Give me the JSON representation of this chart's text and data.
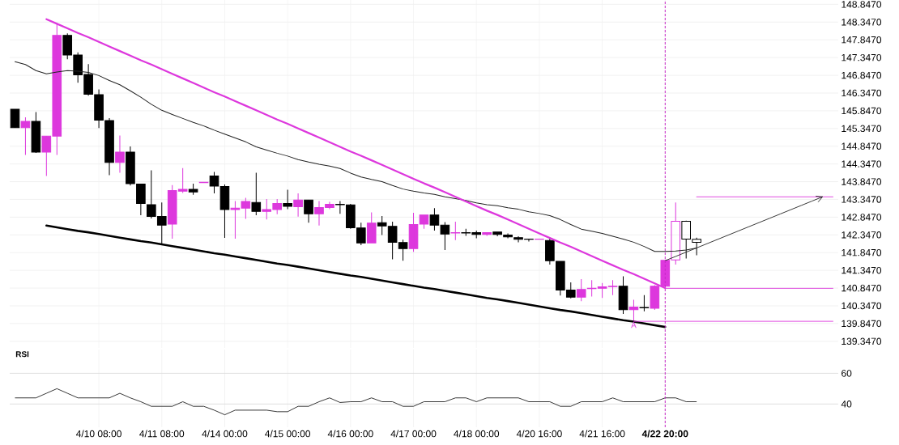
{
  "chart_data": [
    {
      "type": "candlestick",
      "categories": [
        null,
        null,
        null,
        null,
        null,
        null,
        null,
        null,
        "4/10 08:00",
        null,
        null,
        null,
        null,
        null,
        "4/11 08:00",
        null,
        null,
        null,
        null,
        null,
        "4/14 00:00",
        null,
        null,
        null,
        null,
        null,
        "4/15 00:00",
        null,
        null,
        null,
        null,
        null,
        "4/16 00:00",
        null,
        null,
        null,
        null,
        null,
        "4/17 00:00",
        null,
        null,
        null,
        null,
        null,
        "4/18 00:00",
        null,
        null,
        null,
        null,
        null,
        "4/20 16:00",
        null,
        null,
        null,
        null,
        null,
        "4/21 16:00",
        null,
        null,
        null,
        null,
        null,
        "4/22 20:00",
        null,
        null,
        null,
        null,
        null,
        null,
        null,
        null,
        null,
        null,
        null,
        null,
        null,
        null,
        null,
        null
      ],
      "ohlc": [
        [
          145.89,
          145.89,
          145.37,
          145.37
        ],
        [
          145.37,
          145.66,
          144.6,
          145.55
        ],
        [
          145.55,
          145.81,
          144.66,
          144.68
        ],
        [
          144.68,
          145.13,
          144.01,
          145.13
        ],
        [
          145.13,
          148.31,
          144.6,
          147.97
        ],
        [
          147.97,
          148.03,
          147.3,
          147.42
        ],
        [
          147.42,
          147.49,
          146.64,
          146.86
        ],
        [
          146.87,
          147.16,
          146.27,
          146.31
        ],
        [
          146.3,
          146.45,
          145.36,
          145.58
        ],
        [
          145.57,
          145.64,
          144.03,
          144.39
        ],
        [
          144.39,
          145.15,
          144.1,
          144.68
        ],
        [
          144.68,
          144.84,
          143.74,
          143.79
        ],
        [
          143.78,
          143.79,
          142.9,
          143.23
        ],
        [
          143.2,
          144.17,
          142.81,
          142.87
        ],
        [
          142.87,
          143.26,
          142.08,
          142.62
        ],
        [
          142.65,
          143.75,
          142.24,
          143.6
        ],
        [
          143.58,
          144.23,
          143.53,
          143.63
        ],
        [
          143.63,
          143.79,
          143.48,
          143.56
        ],
        [
          143.82,
          143.83,
          143.82,
          143.83
        ],
        [
          144.01,
          144.12,
          143.52,
          143.72
        ],
        [
          143.71,
          143.77,
          142.26,
          143.06
        ],
        [
          143.06,
          143.3,
          142.24,
          143.1
        ],
        [
          143.1,
          143.39,
          142.8,
          143.29
        ],
        [
          143.26,
          144.1,
          142.9,
          143.01
        ],
        [
          143.01,
          143.36,
          142.78,
          143.06
        ],
        [
          143.06,
          143.36,
          142.93,
          143.23
        ],
        [
          143.23,
          143.62,
          143.07,
          143.15
        ],
        [
          143.14,
          143.52,
          142.86,
          143.33
        ],
        [
          143.33,
          143.33,
          142.69,
          142.94
        ],
        [
          142.94,
          143.3,
          142.61,
          143.12
        ],
        [
          143.12,
          143.28,
          143.07,
          143.21
        ],
        [
          143.21,
          143.3,
          142.94,
          143.2
        ],
        [
          143.19,
          143.22,
          142.52,
          142.55
        ],
        [
          142.54,
          142.69,
          142.06,
          142.12
        ],
        [
          142.12,
          142.98,
          142.12,
          142.68
        ],
        [
          142.69,
          142.88,
          142.34,
          142.6
        ],
        [
          142.59,
          142.72,
          141.66,
          142.14
        ],
        [
          142.13,
          142.21,
          141.62,
          141.96
        ],
        [
          141.96,
          142.97,
          141.87,
          142.64
        ],
        [
          142.65,
          142.91,
          142.52,
          142.91
        ],
        [
          142.91,
          143.1,
          142.47,
          142.62
        ],
        [
          142.62,
          142.71,
          141.92,
          142.37
        ],
        [
          142.4,
          142.72,
          142.2,
          142.41
        ],
        [
          142.41,
          142.52,
          142.32,
          142.4
        ],
        [
          142.41,
          142.47,
          142.25,
          142.36
        ],
        [
          142.36,
          142.42,
          142.32,
          142.41
        ],
        [
          142.43,
          142.43,
          142.31,
          142.36
        ],
        [
          142.34,
          142.39,
          142.25,
          142.29
        ],
        [
          142.27,
          142.31,
          142.14,
          142.22
        ],
        [
          142.23,
          142.23,
          142.16,
          142.22
        ],
        [
          142.22,
          142.23,
          142.22,
          142.23
        ],
        [
          142.19,
          142.24,
          141.51,
          141.62
        ],
        [
          141.6,
          141.6,
          140.64,
          140.79
        ],
        [
          140.79,
          141.01,
          140.56,
          140.59
        ],
        [
          140.59,
          141.1,
          140.48,
          140.81
        ],
        [
          140.83,
          141.07,
          140.61,
          140.84
        ],
        [
          140.84,
          140.99,
          140.57,
          140.88
        ],
        [
          140.89,
          141.07,
          140.65,
          140.9
        ],
        [
          140.9,
          141.18,
          140.12,
          140.24
        ],
        [
          140.24,
          140.52,
          139.91,
          140.31
        ],
        [
          140.3,
          140.65,
          140.19,
          140.29
        ],
        [
          140.28,
          140.93,
          140.23,
          140.9
        ],
        [
          140.9,
          141.63,
          140.84,
          141.63
        ],
        [
          141.64,
          143.26,
          141.51,
          142.73
        ],
        [
          142.73,
          142.75,
          141.68,
          142.23
        ],
        [
          142.22,
          142.27,
          141.77,
          142.14
        ],
        null,
        null,
        null,
        null,
        null,
        null,
        null,
        null,
        null,
        null,
        null,
        null,
        null
      ],
      "colors": [
        "#000000",
        "#dd38dd",
        "#000000",
        "#dd38dd",
        "#dd38dd",
        "#000000",
        "#000000",
        "#000000",
        "#000000",
        "#000000",
        "#dd38dd",
        "#000000",
        "#000000",
        "#000000",
        "#000000",
        "#dd38dd",
        "#dd38dd",
        "#000000",
        "#dd38dd",
        "#000000",
        "#000000",
        "#dd38dd",
        "#dd38dd",
        "#000000",
        "#dd38dd",
        "#dd38dd",
        "#000000",
        "#dd38dd",
        "#000000",
        "#dd38dd",
        "#dd38dd",
        "#000000",
        "#000000",
        "#000000",
        "#dd38dd",
        "#000000",
        "#000000",
        "#000000",
        "#dd38dd",
        "#dd38dd",
        "#000000",
        "#000000",
        "#dd38dd",
        "#000000",
        "#000000",
        "#dd38dd",
        "#000000",
        "#000000",
        "#000000",
        "#000000",
        "#dd38dd",
        "#000000",
        "#000000",
        "#000000",
        "#dd38dd",
        "#dd38dd",
        "#dd38dd",
        "#dd38dd",
        "#000000",
        "#dd38dd",
        "#000000",
        "#dd38dd",
        "#dd38dd",
        "#dd38dd",
        "#000000",
        "#000000",
        null,
        null,
        null,
        null,
        null,
        null,
        null,
        null,
        null,
        null,
        null,
        null,
        null
      ],
      "series": [
        {
          "type": "line",
          "color": "#222222",
          "values": [
            147.23,
            147.15,
            146.98,
            146.89,
            146.94,
            146.98,
            146.96,
            146.93,
            146.84,
            146.7,
            146.58,
            146.41,
            146.23,
            146.03,
            145.86,
            145.74,
            145.63,
            145.52,
            145.42,
            145.3,
            145.19,
            145.08,
            144.97,
            144.83,
            144.74,
            144.65,
            144.57,
            144.47,
            144.4,
            144.34,
            144.29,
            144.22,
            144.09,
            143.98,
            143.91,
            143.85,
            143.74,
            143.64,
            143.58,
            143.53,
            143.49,
            143.42,
            143.37,
            143.32,
            143.25,
            143.2,
            143.17,
            143.11,
            143.07,
            143.0,
            142.95,
            142.89,
            142.78,
            142.64,
            142.51,
            142.45,
            142.39,
            142.31,
            142.23,
            142.14,
            142.02,
            141.88,
            141.88,
            141.89,
            141.92,
            141.98,
            null,
            null,
            null,
            null,
            null,
            null,
            null,
            null,
            null,
            null,
            null,
            null,
            null
          ]
        },
        {
          "type": "line",
          "color": "#dd38dd",
          "values": [
            null,
            null,
            null,
            148.43,
            148.3,
            148.17,
            148.04,
            147.92,
            147.79,
            147.66,
            147.53,
            147.4,
            147.27,
            147.15,
            147.02,
            146.89,
            146.76,
            146.63,
            146.5,
            146.37,
            146.25,
            146.12,
            145.99,
            145.86,
            145.73,
            145.6,
            145.48,
            145.35,
            145.22,
            145.09,
            144.96,
            144.83,
            144.7,
            144.58,
            144.45,
            144.32,
            144.19,
            144.06,
            143.93,
            143.8,
            143.68,
            143.55,
            143.42,
            143.29,
            143.16,
            143.03,
            142.91,
            142.78,
            142.65,
            142.52,
            142.39,
            142.26,
            142.13,
            142.01,
            141.88,
            141.75,
            141.62,
            141.49,
            141.36,
            141.24,
            141.11,
            140.98,
            140.85,
            null,
            null,
            null,
            null,
            null,
            null,
            null,
            null,
            null,
            null,
            null,
            null,
            null,
            null,
            null,
            null
          ]
        },
        {
          "type": "line",
          "color": "#000000",
          "values": [
            null,
            null,
            null,
            142.61,
            142.56,
            142.51,
            142.46,
            142.42,
            142.37,
            142.32,
            142.27,
            142.22,
            142.17,
            142.13,
            142.08,
            142.03,
            141.98,
            141.93,
            141.88,
            141.83,
            141.79,
            141.74,
            141.69,
            141.64,
            141.59,
            141.54,
            141.5,
            141.45,
            141.4,
            141.35,
            141.3,
            141.25,
            141.2,
            141.16,
            141.11,
            141.06,
            141.01,
            140.96,
            140.91,
            140.86,
            140.82,
            140.77,
            140.72,
            140.67,
            140.62,
            140.57,
            140.53,
            140.48,
            140.43,
            140.38,
            140.33,
            140.28,
            140.23,
            140.19,
            140.14,
            140.09,
            140.04,
            139.99,
            139.94,
            139.9,
            139.85,
            139.8,
            139.75,
            null,
            null,
            null,
            null,
            null,
            null,
            null,
            null,
            null,
            null,
            null,
            null,
            null,
            null,
            null,
            null
          ]
        },
        {
          "type": "line",
          "color": "#dd38dd",
          "values": [
            null,
            null,
            null,
            null,
            null,
            null,
            null,
            null,
            null,
            null,
            null,
            null,
            null,
            null,
            null,
            null,
            null,
            null,
            null,
            null,
            null,
            null,
            null,
            null,
            null,
            null,
            null,
            null,
            null,
            null,
            null,
            null,
            null,
            null,
            null,
            null,
            null,
            null,
            null,
            null,
            null,
            null,
            null,
            null,
            null,
            null,
            null,
            null,
            null,
            null,
            null,
            null,
            null,
            null,
            null,
            null,
            null,
            null,
            null,
            139.91,
            139.91,
            139.91,
            139.91,
            139.91,
            139.91,
            139.91,
            139.91,
            139.91,
            139.91,
            139.91,
            139.91,
            139.91,
            139.91,
            139.91,
            139.91,
            139.91,
            139.91,
            139.91,
            139.91
          ]
        },
        {
          "type": "line",
          "color": "#dd38dd",
          "values": [
            null,
            null,
            null,
            null,
            null,
            null,
            null,
            null,
            null,
            null,
            null,
            null,
            null,
            null,
            null,
            null,
            null,
            null,
            null,
            null,
            null,
            null,
            null,
            null,
            null,
            null,
            null,
            null,
            null,
            null,
            null,
            null,
            null,
            null,
            null,
            null,
            null,
            null,
            null,
            null,
            null,
            null,
            null,
            null,
            null,
            null,
            null,
            null,
            null,
            null,
            null,
            null,
            null,
            null,
            null,
            null,
            null,
            null,
            null,
            null,
            null,
            null,
            140.84,
            140.84,
            140.84,
            140.84,
            140.84,
            140.84,
            140.84,
            140.84,
            140.84,
            140.84,
            140.84,
            140.84,
            140.84,
            140.84,
            140.84,
            140.84,
            140.84
          ]
        },
        {
          "type": "line",
          "color": "#dd38dd",
          "values": [
            null,
            null,
            null,
            null,
            null,
            null,
            null,
            null,
            null,
            null,
            null,
            null,
            null,
            null,
            null,
            null,
            null,
            null,
            null,
            null,
            null,
            null,
            null,
            null,
            null,
            null,
            null,
            null,
            null,
            null,
            null,
            null,
            null,
            null,
            null,
            null,
            null,
            null,
            null,
            null,
            null,
            null,
            null,
            null,
            null,
            null,
            null,
            null,
            null,
            null,
            null,
            null,
            null,
            null,
            null,
            null,
            null,
            null,
            null,
            null,
            null,
            null,
            null,
            null,
            null,
            143.42,
            143.42,
            143.42,
            143.42,
            143.42,
            143.42,
            143.42,
            143.42,
            143.42,
            143.42,
            143.42,
            143.42,
            143.42,
            143.42
          ]
        },
        {
          "type": "line",
          "color": "#222222",
          "values": [
            null,
            null,
            null,
            null,
            null,
            null,
            null,
            null,
            null,
            null,
            null,
            null,
            null,
            null,
            null,
            null,
            null,
            null,
            null,
            null,
            null,
            null,
            null,
            null,
            null,
            null,
            null,
            null,
            null,
            null,
            null,
            null,
            null,
            null,
            null,
            null,
            null,
            null,
            null,
            null,
            null,
            null,
            null,
            null,
            null,
            null,
            null,
            null,
            null,
            null,
            null,
            null,
            null,
            null,
            null,
            null,
            null,
            null,
            null,
            null,
            null,
            null,
            141.62,
            141.74,
            141.86,
            141.98,
            142.1,
            142.22,
            142.34,
            142.46,
            142.58,
            142.7,
            142.82,
            142.94,
            143.06,
            143.18,
            143.3,
            143.42,
            null
          ]
        }
      ],
      "ylim": [
        139.16,
        148.97
      ],
      "yticks": [
        {
          "value": 139.347,
          "label": "139.3470"
        },
        {
          "value": 139.847,
          "label": "139.8470"
        },
        {
          "value": 140.347,
          "label": "140.3470"
        },
        {
          "value": 140.847,
          "label": "140.8470"
        },
        {
          "value": 141.347,
          "label": "141.3470"
        },
        {
          "value": 141.847,
          "label": "141.8470"
        },
        {
          "value": 142.347,
          "label": "142.3470"
        },
        {
          "value": 142.847,
          "label": "142.8470"
        },
        {
          "value": 143.347,
          "label": "143.3470"
        },
        {
          "value": 143.847,
          "label": "143.8470"
        },
        {
          "value": 144.347,
          "label": "144.3470"
        },
        {
          "value": 144.847,
          "label": "144.8470"
        },
        {
          "value": 145.347,
          "label": "145.3470"
        },
        {
          "value": 145.847,
          "label": "145.8470"
        },
        {
          "value": 146.347,
          "label": "146.3470"
        },
        {
          "value": 146.847,
          "label": "146.8470"
        },
        {
          "value": 147.347,
          "label": "147.3470"
        },
        {
          "value": 147.847,
          "label": "147.8470"
        },
        {
          "value": 148.347,
          "label": "148.3470"
        },
        {
          "value": 148.847,
          "label": "148.8470"
        }
      ],
      "tick_labels": "y",
      "grid": true,
      "ref_lines": [
        {
          "axis": "x",
          "value": "4/22 20:00",
          "color": "#c82ac8",
          "line_style": "dashed"
        }
      ],
      "annotations": [
        {
          "text": "A",
          "y": 139.91
        }
      ]
    },
    {
      "type": "line",
      "title": "RSI",
      "color": "#222222",
      "categories": [
        null,
        null,
        null,
        null,
        null,
        null,
        null,
        null,
        "4/10 08:00",
        null,
        null,
        null,
        null,
        null,
        "4/11 08:00",
        null,
        null,
        null,
        null,
        null,
        "4/14 00:00",
        null,
        null,
        null,
        null,
        null,
        "4/15 00:00",
        null,
        null,
        null,
        null,
        null,
        "4/16 00:00",
        null,
        null,
        null,
        null,
        null,
        "4/17 00:00",
        null,
        null,
        null,
        null,
        null,
        "4/18 00:00",
        null,
        null,
        null,
        null,
        null,
        "4/20 16:00",
        null,
        null,
        null,
        null,
        null,
        "4/21 16:00",
        null,
        null,
        null,
        null,
        null,
        "4/22 20:00",
        null,
        null,
        null,
        null,
        null,
        null,
        null,
        null,
        null,
        null,
        null,
        null,
        null,
        null,
        null,
        null
      ],
      "values": [
        44,
        44,
        44,
        47,
        50,
        47,
        44,
        44,
        44,
        44,
        47,
        44,
        41.5,
        38.5,
        38.5,
        38.5,
        41.5,
        38.5,
        38.5,
        36,
        33,
        36,
        36,
        36,
        36,
        35,
        35,
        38.5,
        38.5,
        41.5,
        44,
        41,
        41.5,
        41.5,
        44,
        41.5,
        41.5,
        38.5,
        38.5,
        41.5,
        41.5,
        41.5,
        44,
        44,
        41.5,
        44,
        44,
        44,
        44,
        41.5,
        41.5,
        41.5,
        38.5,
        38.5,
        41.5,
        41.5,
        41.5,
        44,
        41.5,
        41.5,
        41.5,
        41.5,
        44,
        44,
        41.5,
        41.5,
        null,
        null,
        null,
        null,
        null,
        null,
        null,
        null,
        null,
        null,
        null,
        null,
        null
      ],
      "ylim": [
        24.9,
        75.5
      ],
      "yticks": [
        40,
        60
      ],
      "grid": true,
      "ref_lines": [
        {
          "axis": "x",
          "value": "4/22 20:00",
          "color": "#c82ac8",
          "line_style": "dashed"
        }
      ]
    }
  ]
}
